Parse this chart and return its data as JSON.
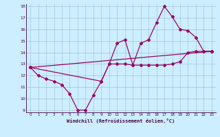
{
  "xlabel": "Windchill (Refroidissement éolien,°C)",
  "background_color": "#cceeff",
  "grid_color": "#99bbcc",
  "line_color": "#990066",
  "xlim": [
    -0.5,
    23.5
  ],
  "ylim": [
    8.8,
    18.2
  ],
  "yticks": [
    9,
    10,
    11,
    12,
    13,
    14,
    15,
    16,
    17,
    18
  ],
  "xticks": [
    0,
    1,
    2,
    3,
    4,
    5,
    6,
    7,
    8,
    9,
    10,
    11,
    12,
    13,
    14,
    15,
    16,
    17,
    18,
    19,
    20,
    21,
    22,
    23
  ],
  "curve": {
    "x": [
      0,
      1,
      2,
      3,
      4,
      5,
      6,
      7,
      8,
      9,
      10,
      11,
      12,
      13,
      14,
      15,
      16,
      17,
      18,
      19,
      20,
      21,
      22,
      23
    ],
    "y": [
      12.7,
      12.0,
      11.7,
      11.5,
      11.2,
      10.4,
      9.0,
      9.0,
      10.3,
      11.5,
      13.0,
      14.8,
      15.1,
      12.9,
      14.8,
      15.1,
      16.6,
      18.0,
      17.1,
      16.0,
      15.9,
      15.3,
      14.1,
      14.1
    ]
  },
  "straight_line": {
    "x": [
      0,
      23
    ],
    "y": [
      12.7,
      14.1
    ]
  },
  "mid_line": {
    "x": [
      0,
      9,
      10,
      11,
      12,
      13,
      14,
      15,
      16,
      17,
      18,
      19,
      20,
      21,
      22,
      23
    ],
    "y": [
      12.7,
      11.5,
      13.0,
      13.0,
      13.0,
      12.9,
      12.9,
      12.9,
      12.9,
      12.9,
      13.0,
      13.2,
      14.0,
      14.1,
      14.1,
      14.1
    ]
  }
}
